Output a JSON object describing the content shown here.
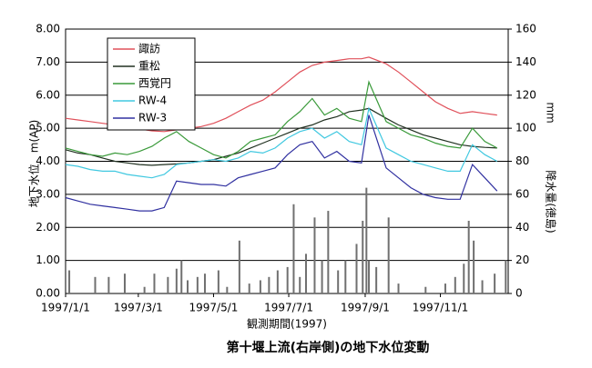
{
  "chart_data": {
    "type": "line",
    "title": "第十堰上流(右岸側)の地下水位変動",
    "xlabel": "観測期間(1997)",
    "ylabel": "地下水位　m(AP)",
    "y2label": "降水量(徳島)",
    "y2unit": "mm",
    "x": [
      "1997/1/1",
      "1997/1/11",
      "1997/1/21",
      "1997/1/31",
      "1997/2/10",
      "1997/2/20",
      "1997/3/2",
      "1997/3/12",
      "1997/3/22",
      "1997/4/1",
      "1997/4/11",
      "1997/4/21",
      "1997/5/1",
      "1997/5/11",
      "1997/5/21",
      "1997/5/31",
      "1997/6/10",
      "1997/6/20",
      "1997/6/30",
      "1997/7/10",
      "1997/7/20",
      "1997/7/30",
      "1997/8/9",
      "1997/8/19",
      "1997/8/29",
      "1997/9/4",
      "1997/9/18",
      "1997/9/28",
      "1997/10/8",
      "1997/10/18",
      "1997/10/28",
      "1997/11/7",
      "1997/11/17",
      "1997/11/27",
      "1997/12/7",
      "1997/12/17"
    ],
    "xlim": [
      "1997/1/1",
      "1997/12/26"
    ],
    "xticks": [
      "1997/1/1",
      "1997/3/1",
      "1997/5/1",
      "1997/7/1",
      "1997/9/1",
      "1997/11/1"
    ],
    "ylim": [
      0,
      8
    ],
    "yticks": [
      {
        "value": 0,
        "label": "0.00"
      },
      {
        "value": 1,
        "label": "1.00"
      },
      {
        "value": 2,
        "label": "2.00"
      },
      {
        "value": 3,
        "label": "3.00"
      },
      {
        "value": 4,
        "label": "4.00"
      },
      {
        "value": 5,
        "label": "5.00"
      },
      {
        "value": 6,
        "label": "6.00"
      },
      {
        "value": 7,
        "label": "7.00"
      },
      {
        "value": 8,
        "label": "8.00"
      }
    ],
    "y2lim": [
      0,
      160
    ],
    "y2ticks": [
      0,
      20,
      40,
      60,
      80,
      100,
      120,
      140,
      160
    ],
    "grid": true,
    "legend": "upper left",
    "series": [
      {
        "name": "諏訪",
        "color": "#e0505a",
        "values": [
          5.3,
          5.25,
          5.2,
          5.15,
          5.1,
          5.05,
          4.98,
          4.92,
          4.9,
          4.95,
          5.0,
          5.05,
          5.15,
          5.3,
          5.5,
          5.7,
          5.85,
          6.1,
          6.4,
          6.7,
          6.9,
          7.0,
          7.05,
          7.1,
          7.1,
          7.15,
          6.95,
          6.7,
          6.4,
          6.1,
          5.8,
          5.6,
          5.45,
          5.5,
          5.45,
          5.4
        ]
      },
      {
        "name": "重松",
        "color": "#203020",
        "values": [
          4.35,
          4.25,
          4.2,
          4.1,
          4.0,
          3.95,
          3.9,
          3.88,
          3.9,
          3.92,
          3.95,
          4.0,
          4.05,
          4.15,
          4.25,
          4.4,
          4.55,
          4.7,
          4.85,
          5.0,
          5.1,
          5.25,
          5.35,
          5.5,
          5.55,
          5.6,
          5.3,
          5.1,
          4.95,
          4.8,
          4.7,
          4.6,
          4.5,
          4.45,
          4.42,
          4.4
        ]
      },
      {
        "name": "西覚円",
        "color": "#3a9a3a",
        "values": [
          4.4,
          4.3,
          4.2,
          4.15,
          4.25,
          4.2,
          4.3,
          4.45,
          4.7,
          4.9,
          4.6,
          4.4,
          4.2,
          4.1,
          4.3,
          4.6,
          4.7,
          4.8,
          5.2,
          5.5,
          5.9,
          5.4,
          5.6,
          5.3,
          5.2,
          6.4,
          5.2,
          5.0,
          4.8,
          4.7,
          4.55,
          4.45,
          4.4,
          5.0,
          4.6,
          4.4
        ]
      },
      {
        "name": "RW-4",
        "color": "#40c8e0",
        "values": [
          3.9,
          3.85,
          3.75,
          3.7,
          3.7,
          3.6,
          3.55,
          3.5,
          3.6,
          3.9,
          3.95,
          4.0,
          4.05,
          4.0,
          4.1,
          4.3,
          4.25,
          4.4,
          4.7,
          4.9,
          5.0,
          4.7,
          4.9,
          4.6,
          4.5,
          5.6,
          4.4,
          4.2,
          4.0,
          3.9,
          3.8,
          3.7,
          3.7,
          4.5,
          4.2,
          4.0
        ]
      },
      {
        "name": "RW-3",
        "color": "#3030a0",
        "values": [
          2.9,
          2.8,
          2.7,
          2.65,
          2.6,
          2.55,
          2.5,
          2.5,
          2.6,
          3.4,
          3.35,
          3.3,
          3.3,
          3.25,
          3.5,
          3.6,
          3.7,
          3.8,
          4.2,
          4.5,
          4.6,
          4.1,
          4.3,
          4.0,
          3.95,
          5.4,
          3.8,
          3.5,
          3.2,
          3.0,
          2.9,
          2.85,
          2.85,
          3.9,
          3.5,
          3.1
        ]
      },
      {
        "type": "bar",
        "axis": "y2",
        "color": "#707070",
        "x": [
          "1997/1/4",
          "1997/1/25",
          "1997/2/5",
          "1997/2/18",
          "1997/3/6",
          "1997/3/14",
          "1997/3/25",
          "1997/4/1",
          "1997/4/5",
          "1997/4/10",
          "1997/4/18",
          "1997/4/24",
          "1997/5/5",
          "1997/5/12",
          "1997/5/22",
          "1997/5/30",
          "1997/6/8",
          "1997/6/15",
          "1997/6/22",
          "1997/6/30",
          "1997/7/5",
          "1997/7/10",
          "1997/7/15",
          "1997/7/22",
          "1997/7/28",
          "1997/8/2",
          "1997/8/10",
          "1997/8/16",
          "1997/8/25",
          "1997/8/30",
          "1997/9/2",
          "1997/9/4",
          "1997/9/10",
          "1997/9/20",
          "1997/9/28",
          "1997/10/20",
          "1997/11/5",
          "1997/11/13",
          "1997/11/20",
          "1997/11/24",
          "1997/11/28",
          "1997/12/5",
          "1997/12/15",
          "1997/12/24"
        ],
        "values": [
          14,
          10,
          10,
          12,
          4,
          12,
          10,
          15,
          20,
          8,
          10,
          12,
          14,
          4,
          32,
          6,
          8,
          10,
          14,
          16,
          54,
          10,
          24,
          46,
          20,
          50,
          14,
          20,
          30,
          44,
          64,
          20,
          16,
          46,
          6,
          4,
          6,
          10,
          18,
          44,
          32,
          8,
          12,
          20
        ]
      }
    ]
  }
}
